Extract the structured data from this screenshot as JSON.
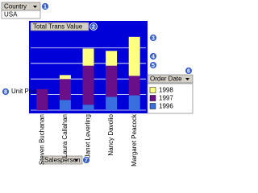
{
  "filter": {
    "field": "Country",
    "value": "USA"
  },
  "callouts": [
    "1",
    "2",
    "3",
    "4",
    "5",
    "6",
    "7",
    "8"
  ],
  "chart_data": {
    "type": "stacked-bar",
    "title": "Total Trans Value",
    "y_label": "Unit Price",
    "x_label": "Salesperson",
    "legend_title": "Order Date",
    "categories": [
      "Steven Buchanan",
      "Laura Callahan",
      "Janet Leverling",
      "Nancy Davolio",
      "Margaret Peacock"
    ],
    "series": [
      {
        "name": "1996",
        "color": "#3a6fe0",
        "values": [
          0,
          13,
          7,
          17,
          19
        ]
      },
      {
        "name": "1997",
        "color": "#6a0f8a",
        "values": [
          27,
          27,
          50,
          40,
          25
        ]
      },
      {
        "name": "1998",
        "color": "#ffff80",
        "values": [
          0,
          5,
          22,
          19,
          50
        ]
      }
    ],
    "ylim": [
      0,
      100
    ],
    "yticks": [
      0,
      20,
      40,
      60,
      80
    ],
    "grid": true,
    "legend": "right"
  }
}
